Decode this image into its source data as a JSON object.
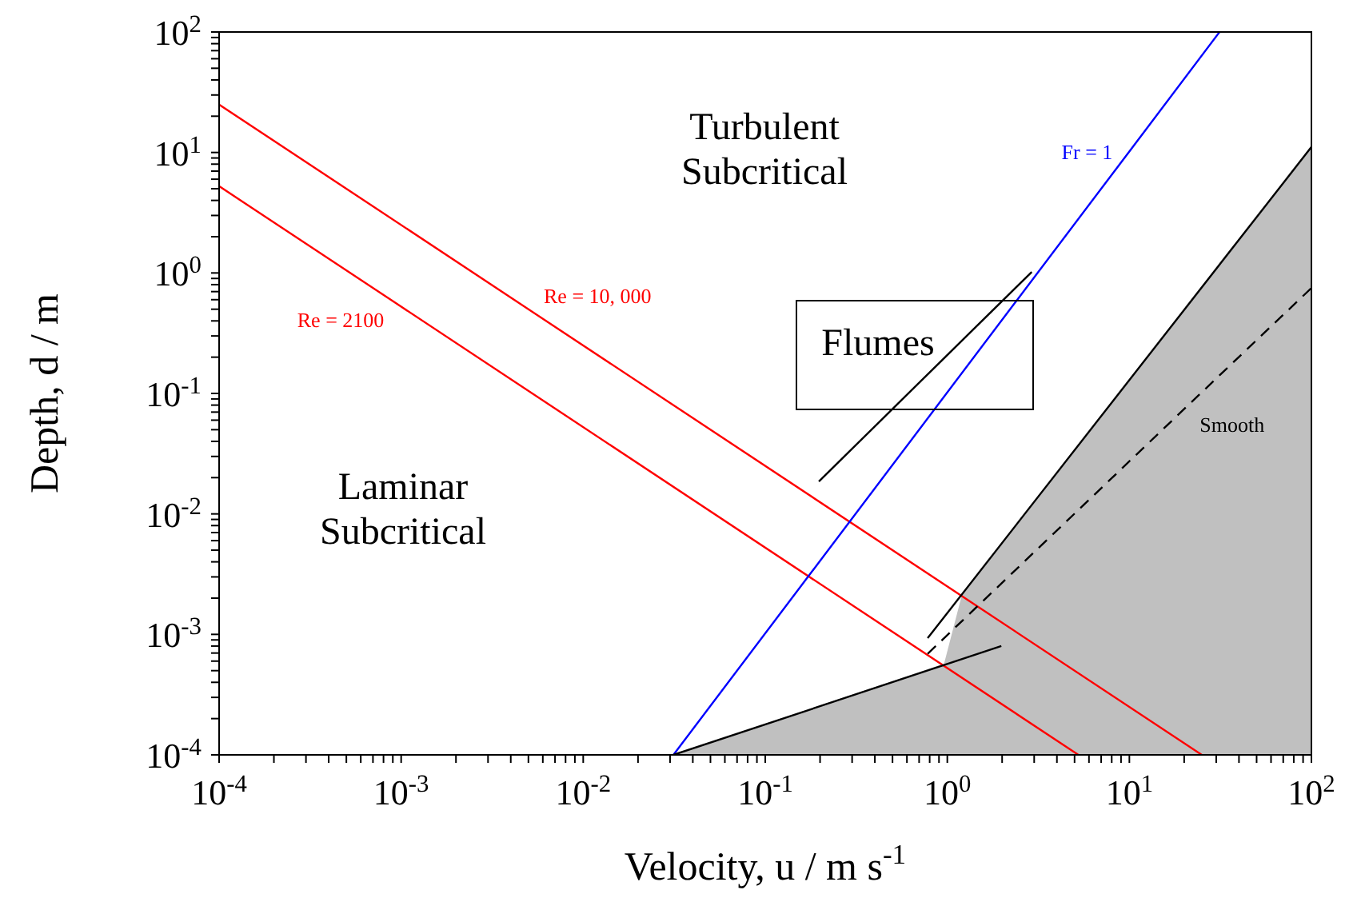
{
  "chart_data": {
    "type": "line",
    "xlabel": "Velocity, u / m s$^{-1}$",
    "ylabel": "Depth, d / m",
    "log": "xy",
    "grid": false,
    "legend": false,
    "marker": "none",
    "xlim": [
      0.0001,
      100
    ],
    "ylim": [
      0.0001,
      100
    ],
    "xticks": [
      {
        "value": 0.0001,
        "label": "10$^{-4}$"
      },
      {
        "value": 0.0002,
        "label": null
      },
      {
        "value": 0.0003,
        "label": null
      },
      {
        "value": 0.0004,
        "label": null
      },
      {
        "value": 0.0005,
        "label": null
      },
      {
        "value": 0.0006,
        "label": null
      },
      {
        "value": 0.0007,
        "label": null
      },
      {
        "value": 0.0008,
        "label": null
      },
      {
        "value": 0.0009,
        "label": null
      },
      {
        "value": 0.001,
        "label": "10$^{-3}$"
      },
      {
        "value": 0.002,
        "label": null
      },
      {
        "value": 0.003,
        "label": null
      },
      {
        "value": 0.004,
        "label": null
      },
      {
        "value": 0.005,
        "label": null
      },
      {
        "value": 0.006,
        "label": null
      },
      {
        "value": 0.007,
        "label": null
      },
      {
        "value": 0.008,
        "label": null
      },
      {
        "value": 0.009,
        "label": null
      },
      {
        "value": 0.01,
        "label": "10$^{-2}$"
      },
      {
        "value": 0.02,
        "label": null
      },
      {
        "value": 0.03,
        "label": null
      },
      {
        "value": 0.04,
        "label": null
      },
      {
        "value": 0.05,
        "label": null
      },
      {
        "value": 0.06,
        "label": null
      },
      {
        "value": 0.07,
        "label": null
      },
      {
        "value": 0.08,
        "label": null
      },
      {
        "value": 0.09,
        "label": null
      },
      {
        "value": 0.1,
        "label": "10$^{-1}$"
      },
      {
        "value": 0.2,
        "label": null
      },
      {
        "value": 0.3,
        "label": null
      },
      {
        "value": 0.4,
        "label": null
      },
      {
        "value": 0.5,
        "label": null
      },
      {
        "value": 0.6,
        "label": null
      },
      {
        "value": 0.7,
        "label": null
      },
      {
        "value": 0.8,
        "label": null
      },
      {
        "value": 0.9,
        "label": null
      },
      {
        "value": 1,
        "label": "10$^{0}$"
      },
      {
        "value": 2,
        "label": null
      },
      {
        "value": 3,
        "label": null
      },
      {
        "value": 4,
        "label": null
      },
      {
        "value": 5,
        "label": null
      },
      {
        "value": 6,
        "label": null
      },
      {
        "value": 7,
        "label": null
      },
      {
        "value": 8,
        "label": null
      },
      {
        "value": 9,
        "label": null
      },
      {
        "value": 10,
        "label": "10$^{1}$"
      },
      {
        "value": 20,
        "label": null
      },
      {
        "value": 30,
        "label": null
      },
      {
        "value": 40,
        "label": null
      },
      {
        "value": 50,
        "label": null
      },
      {
        "value": 60,
        "label": null
      },
      {
        "value": 70,
        "label": null
      },
      {
        "value": 80,
        "label": null
      },
      {
        "value": 90,
        "label": null
      },
      {
        "value": 100,
        "label": "10$^{2}$"
      }
    ],
    "yticks": [
      {
        "value": 0.0001,
        "label": "10$^{-4}$"
      },
      {
        "value": 0.0002,
        "label": null
      },
      {
        "value": 0.0003,
        "label": null
      },
      {
        "value": 0.0004,
        "label": null
      },
      {
        "value": 0.0005,
        "label": null
      },
      {
        "value": 0.0006,
        "label": null
      },
      {
        "value": 0.0007,
        "label": null
      },
      {
        "value": 0.0008,
        "label": null
      },
      {
        "value": 0.0009,
        "label": null
      },
      {
        "value": 0.001,
        "label": "10$^{-3}$"
      },
      {
        "value": 0.002,
        "label": null
      },
      {
        "value": 0.003,
        "label": null
      },
      {
        "value": 0.004,
        "label": null
      },
      {
        "value": 0.005,
        "label": null
      },
      {
        "value": 0.006,
        "label": null
      },
      {
        "value": 0.007,
        "label": null
      },
      {
        "value": 0.008,
        "label": null
      },
      {
        "value": 0.009,
        "label": null
      },
      {
        "value": 0.01,
        "label": "10$^{-2}$"
      },
      {
        "value": 0.02,
        "label": null
      },
      {
        "value": 0.03,
        "label": null
      },
      {
        "value": 0.04,
        "label": null
      },
      {
        "value": 0.05,
        "label": null
      },
      {
        "value": 0.06,
        "label": null
      },
      {
        "value": 0.07,
        "label": null
      },
      {
        "value": 0.08,
        "label": null
      },
      {
        "value": 0.09,
        "label": null
      },
      {
        "value": 0.1,
        "label": "10$^{-1}$"
      },
      {
        "value": 0.2,
        "label": null
      },
      {
        "value": 0.3,
        "label": null
      },
      {
        "value": 0.4,
        "label": null
      },
      {
        "value": 0.5,
        "label": null
      },
      {
        "value": 0.6,
        "label": null
      },
      {
        "value": 0.7,
        "label": null
      },
      {
        "value": 0.8,
        "label": null
      },
      {
        "value": 0.9,
        "label": null
      },
      {
        "value": 1,
        "label": "10$^{0}$"
      },
      {
        "value": 2,
        "label": null
      },
      {
        "value": 3,
        "label": null
      },
      {
        "value": 4,
        "label": null
      },
      {
        "value": 5,
        "label": null
      },
      {
        "value": 6,
        "label": null
      },
      {
        "value": 7,
        "label": null
      },
      {
        "value": 8,
        "label": null
      },
      {
        "value": 9,
        "label": null
      },
      {
        "value": 10,
        "label": "10$^{1}$"
      },
      {
        "value": 20,
        "label": null
      },
      {
        "value": 30,
        "label": null
      },
      {
        "value": 40,
        "label": null
      },
      {
        "value": 50,
        "label": null
      },
      {
        "value": 60,
        "label": null
      },
      {
        "value": 70,
        "label": null
      },
      {
        "value": 80,
        "label": null
      },
      {
        "value": 90,
        "label": null
      },
      {
        "value": 100,
        "label": "10$^{2}$"
      }
    ],
    "series": [
      {
        "type": "area",
        "color": "#c0c0c0",
        "x": [
          0.0313,
          0.96,
          1.2,
          100
        ],
        "values": [
          0.0001,
          0.00057,
          0.0021,
          11.1
        ]
      },
      {
        "name": "Re = 2100",
        "color": "#ff0000",
        "x": [
          0.0001,
          0.00091,
          5.25
        ],
        "values": [
          5.25,
          0.577,
          0.0001
        ]
      },
      {
        "name": "Re = 10, 000",
        "color": "#ff0000",
        "x": [
          0.0001,
          0.00538,
          25
        ],
        "values": [
          25,
          0.465,
          0.0001
        ]
      },
      {
        "name": "Fr = 1",
        "color": "#0000ff",
        "x": [
          0.0313,
          9.9,
          31.3
        ],
        "values": [
          0.0001,
          10,
          100
        ]
      },
      {
        "color": "#000000",
        "x": [
          0.197,
          2.91
        ],
        "values": [
          0.0186,
          1.02
        ]
      },
      {
        "color": "#000000",
        "x": [
          0.0313,
          1.98
        ],
        "values": [
          0.0001,
          0.0008
        ]
      },
      {
        "color": "#000000",
        "x": [
          0.78,
          100
        ],
        "values": [
          0.00093,
          11.1
        ]
      },
      {
        "name": "Smooth",
        "color": "#000000",
        "line_style": "dashed",
        "x": [
          0.78,
          20.7,
          100
        ],
        "values": [
          0.00069,
          0.078,
          0.75
        ]
      }
    ],
    "annotations": [
      "Turbulent Subcritical",
      "Laminar Subcritical",
      "Flumes"
    ]
  }
}
